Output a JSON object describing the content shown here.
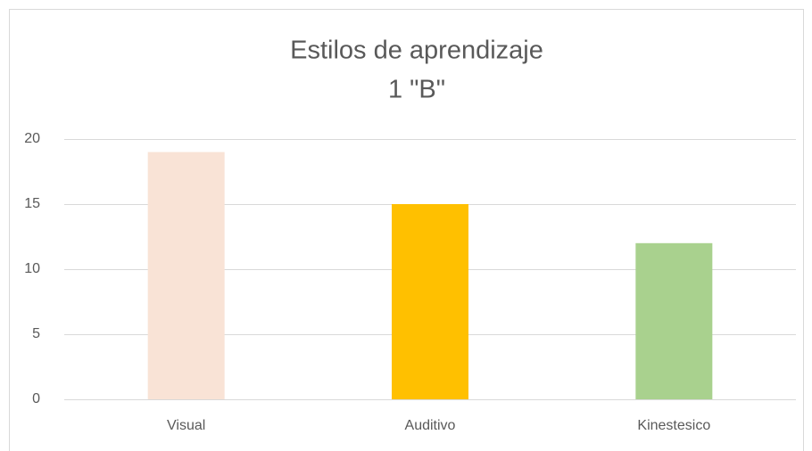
{
  "chart_data": {
    "type": "bar",
    "title": "Estilos de aprendizaje",
    "subtitle": "1 \"B\"",
    "categories": [
      "Visual",
      "Auditivo",
      "Kinestesico"
    ],
    "values": [
      19,
      15,
      12
    ],
    "colors": [
      "#f9e3d6",
      "#ffc000",
      "#a9d18e"
    ],
    "ylim": [
      0,
      20
    ],
    "yticks": [
      0,
      5,
      10,
      15,
      20
    ],
    "grid": true
  }
}
